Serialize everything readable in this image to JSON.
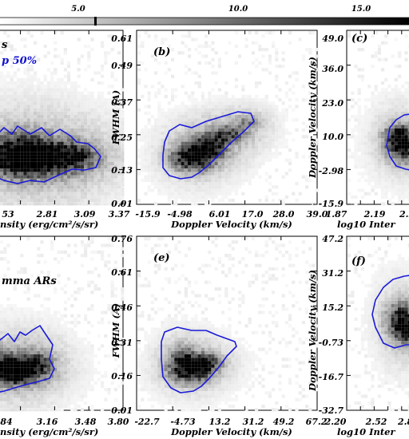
{
  "colorbar": {
    "ticks": [
      {
        "value": 5.0,
        "label": "5.0"
      },
      {
        "value": 10.0,
        "label": "10.0"
      },
      {
        "value": 15.0,
        "label": "15.0"
      }
    ],
    "range": [
      -0.6,
      19.6
    ]
  },
  "chart_data": [
    {
      "type": "heatmap",
      "panel": "",
      "legend": [
        "s",
        "p 50%"
      ],
      "legend_colors": [
        "#000000",
        "#1010d0"
      ],
      "xlabel": "nsity (erg/cm²/s/sr)",
      "ylabel": "",
      "x_tick_labels": [
        "53",
        "2.81",
        "3.09",
        "3.37"
      ],
      "y_tick_labels": [],
      "contour_color": "#1a1ad8"
    },
    {
      "type": "heatmap",
      "panel": "(b)",
      "xlabel": "Doppler Velocity (km/s)",
      "ylabel": "FWHM (A)",
      "x_tick_labels": [
        "-15.9",
        "-4.98",
        "6.01",
        "17.0",
        "28.0",
        "39.0"
      ],
      "y_tick_labels": [
        "0.61",
        "0.49",
        "0.37",
        "0.25",
        "0.13",
        "0.01"
      ],
      "xlim": [
        -15.9,
        39.0
      ],
      "ylim": [
        0.01,
        0.61
      ],
      "contour_color": "#1a1ad8"
    },
    {
      "type": "heatmap",
      "panel": "(c)",
      "xlabel": "log10 Inter",
      "ylabel": "Doppler Velocity (km/s)",
      "x_tick_labels": [
        "1.87",
        "2.19",
        "2.5"
      ],
      "y_tick_labels": [
        "49.0",
        "36.0",
        "23.0",
        "10.0",
        "-2.98",
        "-15.9"
      ],
      "ylim": [
        -15.9,
        49.0
      ],
      "contour_color": "#1a1ad8"
    },
    {
      "type": "heatmap",
      "panel": "",
      "legend": [
        "mma ARs"
      ],
      "xlabel": "nsity (erg/cm²/s/sr)",
      "ylabel": "",
      "x_tick_labels": [
        "84",
        "3.16",
        "3.48",
        "3.80"
      ],
      "y_tick_labels": [],
      "contour_color": "#1a1ad8"
    },
    {
      "type": "heatmap",
      "panel": "(e)",
      "xlabel": "Doppler Velocity (km/s)",
      "ylabel": "FWHM (A)",
      "x_tick_labels": [
        "-22.7",
        "-4.73",
        "13.2",
        "31.2",
        "49.2",
        "67.2"
      ],
      "y_tick_labels": [
        "0.76",
        "0.61",
        "0.46",
        "0.31",
        "0.16",
        "0.01"
      ],
      "xlim": [
        -22.7,
        67.2
      ],
      "ylim": [
        0.01,
        0.76
      ],
      "contour_color": "#1a1ad8"
    },
    {
      "type": "heatmap",
      "panel": "(f)",
      "xlabel": "log10 Inter",
      "ylabel": "Doppler Velocity (km/s)",
      "x_tick_labels": [
        "2.20",
        "2.52",
        "2.8"
      ],
      "y_tick_labels": [
        "47.2",
        "31.2",
        "15.2",
        "-0.73",
        "-16.7",
        "-32.7"
      ],
      "ylim": [
        -32.7,
        47.2
      ],
      "contour_color": "#1a1ad8"
    }
  ]
}
